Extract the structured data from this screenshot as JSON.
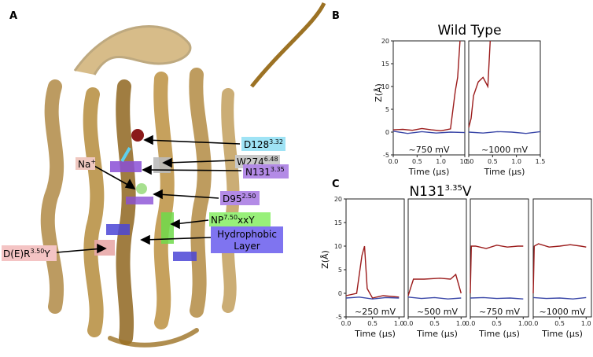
{
  "panels": {
    "a": "A",
    "b": "B",
    "c": "C"
  },
  "protein_labels": {
    "d128": {
      "base": "D128",
      "sup": "3.32",
      "color": "#9fe3f5"
    },
    "w274": {
      "base": "W274",
      "sup": "6.48",
      "color": "#c9c9c9"
    },
    "na": {
      "base": "Na",
      "sup": "+",
      "color": "#f0c8c0"
    },
    "n131": {
      "base": "N131",
      "sup": "3.35",
      "color": "#b38be6"
    },
    "d95": {
      "base": "D95",
      "sup": "2.50",
      "color": "#b38be6"
    },
    "np": {
      "base": "NP",
      "sup": "7.50",
      "tail": "xxY",
      "color": "#98f07a"
    },
    "hydro": {
      "line1": "Hydrophobic",
      "line2": "Layer",
      "color": "#7f74f0"
    },
    "dry": {
      "base": "D(E)R",
      "sup": "3.50",
      "tail": "Y",
      "color": "#f4c4c4"
    }
  },
  "wild_type": {
    "title": "Wild Type",
    "ylabel": "Z(Å)",
    "xlabel": "Time (µs)",
    "yticks": [
      "20",
      "15",
      "10",
      "5",
      "0",
      "-5"
    ],
    "xticks": [
      "0.0",
      "0.5",
      "1.0",
      "1.5"
    ],
    "voltages": [
      "~750 mV",
      "~1000 mV"
    ]
  },
  "mutant": {
    "title_base": "N131",
    "title_sup": "3.35",
    "title_tail": "V",
    "ylabel": "Z(Å)",
    "xlabel": "Time (µs)",
    "yticks": [
      "20",
      "15",
      "10",
      "5",
      "0",
      "-5"
    ],
    "xticks": [
      "0.0",
      "0.5",
      "1.0"
    ],
    "voltages": [
      "~250 mV",
      "~500 mV",
      "~750 mV",
      "~1000 mV"
    ]
  },
  "chart_data": [
    {
      "type": "line",
      "title": "Wild Type",
      "ylabel": "Z(Å)",
      "xlabel": "Time (µs)",
      "ylim": [
        -5,
        20
      ],
      "xlim": [
        0,
        1.5
      ],
      "panels": [
        {
          "label": "~750 mV",
          "series": [
            {
              "color": "#9b1b1b",
              "x": [
                0,
                0.2,
                0.4,
                0.6,
                0.8,
                1.0,
                1.2,
                1.3,
                1.35,
                1.4
              ],
              "y": [
                0.5,
                0.6,
                0.4,
                0.8,
                0.5,
                0.3,
                0.7,
                9,
                12,
                20
              ]
            },
            {
              "color": "#3b48a8",
              "x": [
                0,
                0.3,
                0.6,
                0.9,
                1.2,
                1.5
              ],
              "y": [
                0.2,
                -0.3,
                0.1,
                -0.2,
                0.0,
                -0.1
              ]
            }
          ]
        },
        {
          "label": "~1000 mV",
          "series": [
            {
              "color": "#9b1b1b",
              "x": [
                0,
                0.05,
                0.1,
                0.2,
                0.3,
                0.4,
                0.45
              ],
              "y": [
                1,
                3,
                8,
                11,
                12,
                10,
                20
              ]
            },
            {
              "color": "#3b48a8",
              "x": [
                0,
                0.3,
                0.6,
                0.9,
                1.2,
                1.5
              ],
              "y": [
                0.0,
                -0.2,
                0.1,
                0.0,
                -0.3,
                0.1
              ]
            }
          ]
        }
      ]
    },
    {
      "type": "line",
      "ylabel": "Z(Å)",
      "xlabel": "Time (µs)",
      "ylim": [
        -5,
        20
      ],
      "xlim": [
        0,
        1.1
      ],
      "panels": [
        {
          "label": "~250 mV",
          "series": [
            {
              "color": "#9b1b1b",
              "x": [
                0,
                0.2,
                0.3,
                0.35,
                0.4,
                0.5,
                0.7,
                1.0
              ],
              "y": [
                -0.5,
                0,
                8,
                10,
                1,
                -1,
                -0.5,
                -0.8
              ]
            },
            {
              "color": "#3b48a8",
              "x": [
                0,
                0.25,
                0.5,
                0.75,
                1.0
              ],
              "y": [
                -1,
                -0.8,
                -1.2,
                -0.9,
                -1.0
              ]
            }
          ]
        },
        {
          "label": "~500 mV",
          "series": [
            {
              "color": "#9b1b1b",
              "x": [
                0,
                0.1,
                0.3,
                0.6,
                0.8,
                0.9,
                1.0
              ],
              "y": [
                -0.5,
                3,
                3,
                3.2,
                3,
                4,
                0
              ]
            },
            {
              "color": "#3b48a8",
              "x": [
                0,
                0.25,
                0.5,
                0.75,
                1.0
              ],
              "y": [
                -0.8,
                -1.1,
                -0.9,
                -1.2,
                -1.0
              ]
            }
          ]
        },
        {
          "label": "~750 mV",
          "series": [
            {
              "color": "#9b1b1b",
              "x": [
                0,
                0.02,
                0.1,
                0.3,
                0.5,
                0.7,
                0.9,
                1.0
              ],
              "y": [
                0,
                10,
                10,
                9.5,
                10.2,
                9.8,
                10,
                10
              ]
            },
            {
              "color": "#3b48a8",
              "x": [
                0,
                0.25,
                0.5,
                0.75,
                1.0
              ],
              "y": [
                -1,
                -0.9,
                -1.1,
                -1.0,
                -1.2
              ]
            }
          ]
        },
        {
          "label": "~1000 mV",
          "series": [
            {
              "color": "#9b1b1b",
              "x": [
                0,
                0.02,
                0.1,
                0.3,
                0.5,
                0.7,
                0.9,
                1.0
              ],
              "y": [
                0,
                10,
                10.5,
                9.8,
                10,
                10.3,
                10,
                9.8
              ]
            },
            {
              "color": "#3b48a8",
              "x": [
                0,
                0.25,
                0.5,
                0.75,
                1.0
              ],
              "y": [
                -0.9,
                -1.1,
                -1.0,
                -1.2,
                -0.9
              ]
            }
          ]
        }
      ]
    }
  ]
}
